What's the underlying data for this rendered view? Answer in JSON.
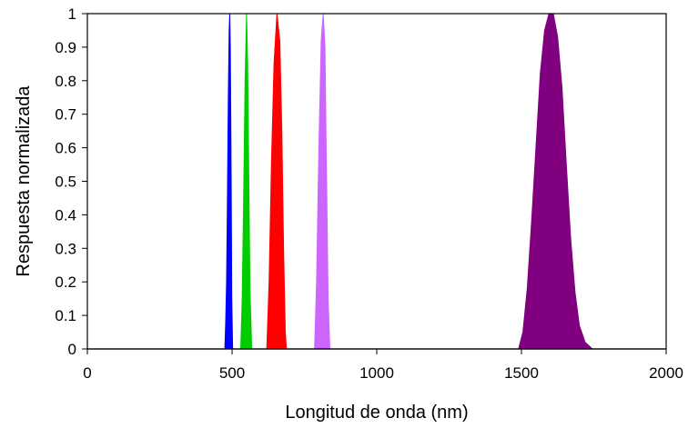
{
  "chart_data": {
    "type": "area",
    "title": "",
    "xlabel": "Longitud de onda (nm)",
    "ylabel": "Respuesta normalizada",
    "xlim": [
      0,
      2000
    ],
    "ylim": [
      0,
      1
    ],
    "x_ticks": [
      "0",
      "500",
      "1000",
      "1500",
      "2000"
    ],
    "x_tick_values": [
      0,
      500,
      1000,
      1500,
      2000
    ],
    "y_ticks": [
      "0",
      "0.1",
      "0.2",
      "0.3",
      "0.4",
      "0.5",
      "0.6",
      "0.7",
      "0.8",
      "0.9",
      "1"
    ],
    "y_tick_values": [
      0,
      0.1,
      0.2,
      0.3,
      0.4,
      0.5,
      0.6,
      0.7,
      0.8,
      0.9,
      1
    ],
    "grid": false,
    "legend": "none",
    "series": [
      {
        "color": "#0000ff",
        "points": [
          [
            475,
            0
          ],
          [
            478,
            0.08
          ],
          [
            481,
            0.2
          ],
          [
            484,
            0.45
          ],
          [
            487,
            0.75
          ],
          [
            490,
            0.95
          ],
          [
            492,
            1
          ],
          [
            494,
            0.9
          ],
          [
            497,
            0.5
          ],
          [
            499,
            0.15
          ],
          [
            502,
            0
          ]
        ]
      },
      {
        "color": "#00cc00",
        "points": [
          [
            530,
            0
          ],
          [
            535,
            0.15
          ],
          [
            540,
            0.45
          ],
          [
            545,
            0.8
          ],
          [
            550,
            1
          ],
          [
            554,
            0.85
          ],
          [
            558,
            0.5
          ],
          [
            562,
            0.18
          ],
          [
            568,
            0
          ]
        ]
      },
      {
        "color": "#ff0000",
        "points": [
          [
            620,
            0
          ],
          [
            628,
            0.2
          ],
          [
            636,
            0.55
          ],
          [
            645,
            0.85
          ],
          [
            655,
            1
          ],
          [
            665,
            0.92
          ],
          [
            672,
            0.65
          ],
          [
            678,
            0.3
          ],
          [
            684,
            0.05
          ],
          [
            688,
            0
          ]
        ]
      },
      {
        "color": "#cc66ff",
        "points": [
          [
            785,
            0
          ],
          [
            792,
            0.2
          ],
          [
            800,
            0.6
          ],
          [
            808,
            0.92
          ],
          [
            815,
            1
          ],
          [
            821,
            0.9
          ],
          [
            826,
            0.55
          ],
          [
            832,
            0.15
          ],
          [
            838,
            0
          ]
        ]
      },
      {
        "color": "#800080",
        "points": [
          [
            1490,
            0
          ],
          [
            1505,
            0.05
          ],
          [
            1520,
            0.18
          ],
          [
            1535,
            0.38
          ],
          [
            1550,
            0.6
          ],
          [
            1565,
            0.82
          ],
          [
            1580,
            0.95
          ],
          [
            1595,
            1
          ],
          [
            1610,
            1
          ],
          [
            1625,
            0.93
          ],
          [
            1640,
            0.78
          ],
          [
            1655,
            0.55
          ],
          [
            1670,
            0.33
          ],
          [
            1685,
            0.17
          ],
          [
            1700,
            0.07
          ],
          [
            1720,
            0.02
          ],
          [
            1745,
            0
          ]
        ]
      }
    ]
  }
}
